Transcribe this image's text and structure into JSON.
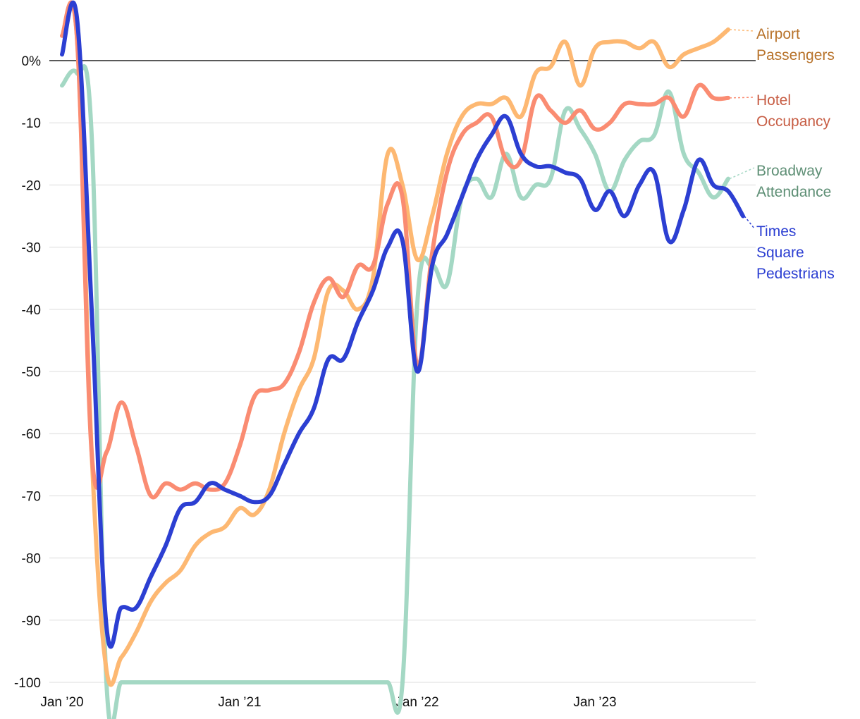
{
  "chart_data": {
    "type": "line",
    "title": "",
    "xlabel": "",
    "ylabel": "",
    "ylim": [
      -100,
      8
    ],
    "y_ticks": [
      {
        "value": 0,
        "label": "0%"
      },
      {
        "value": -10,
        "label": "-10"
      },
      {
        "value": -20,
        "label": "-20"
      },
      {
        "value": -30,
        "label": "-30"
      },
      {
        "value": -40,
        "label": "-40"
      },
      {
        "value": -50,
        "label": "-50"
      },
      {
        "value": -60,
        "label": "-60"
      },
      {
        "value": -70,
        "label": "-70"
      },
      {
        "value": -80,
        "label": "-80"
      },
      {
        "value": -90,
        "label": "-90"
      },
      {
        "value": -100,
        "label": "-100"
      }
    ],
    "xlim": [
      "2020-01",
      "2023-10"
    ],
    "x_ticks": [
      {
        "value": "2020-01",
        "label": "Jan ’20"
      },
      {
        "value": "2021-01",
        "label": "Jan ’21"
      },
      {
        "value": "2022-01",
        "label": "Jan ’22"
      },
      {
        "value": "2023-01",
        "label": "Jan ’23"
      }
    ],
    "grid": true,
    "series": [
      {
        "name": "Broadway Attendance",
        "label_lines": [
          "Broadway",
          "Attendance"
        ],
        "color": "#a4d8c4",
        "label_color": "#5e8f75",
        "points": [
          [
            "2020-01",
            -4
          ],
          [
            "2020-02",
            -2
          ],
          [
            "2020-03",
            -12
          ],
          [
            "2020-04",
            -100
          ],
          [
            "2020-05",
            -100
          ],
          [
            "2020-06",
            -100
          ],
          [
            "2020-07",
            -100
          ],
          [
            "2020-08",
            -100
          ],
          [
            "2020-09",
            -100
          ],
          [
            "2020-10",
            -100
          ],
          [
            "2020-11",
            -100
          ],
          [
            "2020-12",
            -100
          ],
          [
            "2021-01",
            -100
          ],
          [
            "2021-02",
            -100
          ],
          [
            "2021-03",
            -100
          ],
          [
            "2021-04",
            -100
          ],
          [
            "2021-05",
            -100
          ],
          [
            "2021-06",
            -100
          ],
          [
            "2021-07",
            -100
          ],
          [
            "2021-08",
            -100
          ],
          [
            "2021-09",
            -100
          ],
          [
            "2021-10",
            -100
          ],
          [
            "2021-11",
            -100
          ],
          [
            "2021-12",
            -100
          ],
          [
            "2022-01",
            -39
          ],
          [
            "2022-02",
            -33
          ],
          [
            "2022-03",
            -36
          ],
          [
            "2022-04",
            -22
          ],
          [
            "2022-05",
            -19
          ],
          [
            "2022-06",
            -22
          ],
          [
            "2022-07",
            -15
          ],
          [
            "2022-08",
            -22
          ],
          [
            "2022-09",
            -20
          ],
          [
            "2022-10",
            -19
          ],
          [
            "2022-11",
            -8
          ],
          [
            "2022-12",
            -11
          ],
          [
            "2023-01",
            -15
          ],
          [
            "2023-02",
            -21
          ],
          [
            "2023-03",
            -16
          ],
          [
            "2023-04",
            -13
          ],
          [
            "2023-05",
            -12
          ],
          [
            "2023-06",
            -5
          ],
          [
            "2023-07",
            -15
          ],
          [
            "2023-08",
            -18
          ],
          [
            "2023-09",
            -22
          ],
          [
            "2023-10",
            -19
          ]
        ]
      },
      {
        "name": "Airport Passengers",
        "label_lines": [
          "Airport",
          "Passengers"
        ],
        "color": "#fdb872",
        "label_color": "#b8732b",
        "points": [
          [
            "2020-01",
            4
          ],
          [
            "2020-02",
            4
          ],
          [
            "2020-03",
            -63
          ],
          [
            "2020-04",
            -98
          ],
          [
            "2020-05",
            -96
          ],
          [
            "2020-06",
            -92
          ],
          [
            "2020-07",
            -87
          ],
          [
            "2020-08",
            -84
          ],
          [
            "2020-09",
            -82
          ],
          [
            "2020-10",
            -78
          ],
          [
            "2020-11",
            -76
          ],
          [
            "2020-12",
            -75
          ],
          [
            "2021-01",
            -72
          ],
          [
            "2021-02",
            -73
          ],
          [
            "2021-03",
            -69
          ],
          [
            "2021-04",
            -60
          ],
          [
            "2021-05",
            -53
          ],
          [
            "2021-06",
            -48
          ],
          [
            "2021-07",
            -37
          ],
          [
            "2021-08",
            -37
          ],
          [
            "2021-09",
            -40
          ],
          [
            "2021-10",
            -35
          ],
          [
            "2021-11",
            -15
          ],
          [
            "2021-12",
            -20
          ],
          [
            "2022-01",
            -32
          ],
          [
            "2022-02",
            -25
          ],
          [
            "2022-03",
            -15
          ],
          [
            "2022-04",
            -9
          ],
          [
            "2022-05",
            -7
          ],
          [
            "2022-06",
            -7
          ],
          [
            "2022-07",
            -6
          ],
          [
            "2022-08",
            -9
          ],
          [
            "2022-09",
            -2
          ],
          [
            "2022-10",
            -1
          ],
          [
            "2022-11",
            3
          ],
          [
            "2022-12",
            -4
          ],
          [
            "2023-01",
            2
          ],
          [
            "2023-02",
            3
          ],
          [
            "2023-03",
            3
          ],
          [
            "2023-04",
            2
          ],
          [
            "2023-05",
            3
          ],
          [
            "2023-06",
            -1
          ],
          [
            "2023-07",
            1
          ],
          [
            "2023-08",
            2
          ],
          [
            "2023-09",
            3
          ],
          [
            "2023-10",
            5
          ]
        ]
      },
      {
        "name": "Hotel Occupancy",
        "label_lines": [
          "Hotel",
          "Occupancy"
        ],
        "color": "#fa8c72",
        "label_color": "#c75d44",
        "points": [
          [
            "2020-01",
            4
          ],
          [
            "2020-02",
            4
          ],
          [
            "2020-03",
            -63
          ],
          [
            "2020-04",
            -63
          ],
          [
            "2020-05",
            -55
          ],
          [
            "2020-06",
            -62
          ],
          [
            "2020-07",
            -70
          ],
          [
            "2020-08",
            -68
          ],
          [
            "2020-09",
            -69
          ],
          [
            "2020-10",
            -68
          ],
          [
            "2020-11",
            -69
          ],
          [
            "2020-12",
            -68
          ],
          [
            "2021-01",
            -62
          ],
          [
            "2021-02",
            -54
          ],
          [
            "2021-03",
            -53
          ],
          [
            "2021-04",
            -52
          ],
          [
            "2021-05",
            -47
          ],
          [
            "2021-06",
            -39
          ],
          [
            "2021-07",
            -35
          ],
          [
            "2021-08",
            -38
          ],
          [
            "2021-09",
            -33
          ],
          [
            "2021-10",
            -33
          ],
          [
            "2021-11",
            -23
          ],
          [
            "2021-12",
            -22
          ],
          [
            "2022-01",
            -49
          ],
          [
            "2022-02",
            -31
          ],
          [
            "2022-03",
            -18
          ],
          [
            "2022-04",
            -12
          ],
          [
            "2022-05",
            -10
          ],
          [
            "2022-06",
            -9
          ],
          [
            "2022-07",
            -16
          ],
          [
            "2022-08",
            -16
          ],
          [
            "2022-09",
            -6
          ],
          [
            "2022-10",
            -8
          ],
          [
            "2022-11",
            -10
          ],
          [
            "2022-12",
            -8
          ],
          [
            "2023-01",
            -11
          ],
          [
            "2023-02",
            -10
          ],
          [
            "2023-03",
            -7
          ],
          [
            "2023-04",
            -7
          ],
          [
            "2023-05",
            -7
          ],
          [
            "2023-06",
            -6
          ],
          [
            "2023-07",
            -9
          ],
          [
            "2023-08",
            -4
          ],
          [
            "2023-09",
            -6
          ],
          [
            "2023-10",
            -6
          ]
        ]
      },
      {
        "name": "Times Square Pedestrians",
        "label_lines": [
          "Times",
          "Square",
          "Pedestrians"
        ],
        "color": "#2c3fd2",
        "label_color": "#2c3fd2",
        "points": [
          [
            "2020-01",
            1
          ],
          [
            "2020-02",
            7
          ],
          [
            "2020-03",
            -40
          ],
          [
            "2020-04",
            -91
          ],
          [
            "2020-05",
            -88
          ],
          [
            "2020-06",
            -88
          ],
          [
            "2020-07",
            -83
          ],
          [
            "2020-08",
            -78
          ],
          [
            "2020-09",
            -72
          ],
          [
            "2020-10",
            -71
          ],
          [
            "2020-11",
            -68
          ],
          [
            "2020-12",
            -69
          ],
          [
            "2021-01",
            -70
          ],
          [
            "2021-02",
            -71
          ],
          [
            "2021-03",
            -70
          ],
          [
            "2021-04",
            -65
          ],
          [
            "2021-05",
            -60
          ],
          [
            "2021-06",
            -56
          ],
          [
            "2021-07",
            -48
          ],
          [
            "2021-08",
            -48
          ],
          [
            "2021-09",
            -42
          ],
          [
            "2021-10",
            -37
          ],
          [
            "2021-11",
            -30
          ],
          [
            "2021-12",
            -29
          ],
          [
            "2022-01",
            -50
          ],
          [
            "2022-02",
            -33
          ],
          [
            "2022-03",
            -28
          ],
          [
            "2022-04",
            -22
          ],
          [
            "2022-05",
            -16
          ],
          [
            "2022-06",
            -12
          ],
          [
            "2022-07",
            -9
          ],
          [
            "2022-08",
            -15
          ],
          [
            "2022-09",
            -17
          ],
          [
            "2022-10",
            -17
          ],
          [
            "2022-11",
            -18
          ],
          [
            "2022-12",
            -19
          ],
          [
            "2023-01",
            -24
          ],
          [
            "2023-02",
            -21
          ],
          [
            "2023-03",
            -25
          ],
          [
            "2023-04",
            -20
          ],
          [
            "2023-05",
            -18
          ],
          [
            "2023-06",
            -29
          ],
          [
            "2023-07",
            -24
          ],
          [
            "2023-08",
            -16
          ],
          [
            "2023-09",
            -20
          ],
          [
            "2023-10",
            -21
          ],
          [
            "2023-11",
            -25
          ]
        ]
      }
    ],
    "legend": "inline-right"
  }
}
